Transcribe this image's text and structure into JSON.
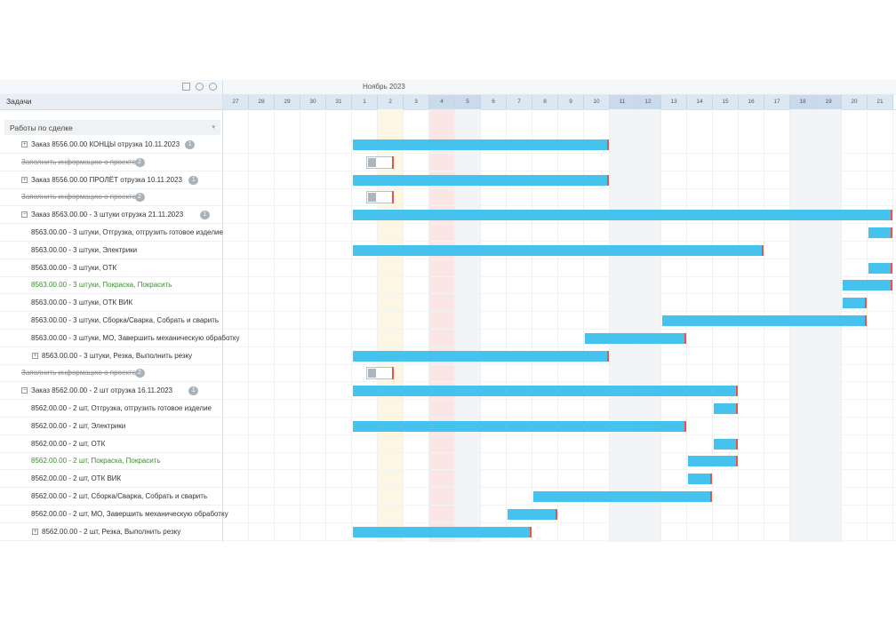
{
  "toolbar": {
    "icons": [
      "print-icon",
      "zoom-in-icon",
      "zoom-out-icon"
    ]
  },
  "left_header": {
    "title": "Задачи"
  },
  "group": {
    "label": "Работы по сделке"
  },
  "timeline": {
    "month": "Ноябрь 2023",
    "days": [
      "27",
      "28",
      "29",
      "30",
      "31",
      "1",
      "2",
      "3",
      "4",
      "5",
      "6",
      "7",
      "8",
      "9",
      "10",
      "11",
      "12",
      "13",
      "14",
      "15",
      "16",
      "17",
      "18",
      "19",
      "20",
      "21"
    ],
    "weekend_days": [
      "4",
      "5",
      "11",
      "12",
      "18",
      "19"
    ],
    "today_day": "2",
    "holiday_day": "4"
  },
  "colors": {
    "bar": "#45c3ee",
    "bar_end": "#e2574c",
    "green_text": "#3c8d2f"
  },
  "tasks": [
    {
      "label": "Заказ 8556.00.00 КОНЦЫ отрузка 10.11.2023",
      "badge": "1",
      "level": 1,
      "toggle": "+",
      "style": "normal",
      "kind": "bar",
      "start": "1",
      "end": "10"
    },
    {
      "label": "Заполнить информацию о проекте",
      "badge": "2",
      "level": 1,
      "toggle": "",
      "style": "strike",
      "kind": "milestone",
      "start": "1",
      "end": "2"
    },
    {
      "label": "Заказ 8556.00.00 ПРОЛЁТ отрузка 10.11.2023",
      "badge": "1",
      "level": 1,
      "toggle": "+",
      "style": "normal",
      "kind": "bar",
      "start": "1",
      "end": "10"
    },
    {
      "label": "Заполнить информацию о проекте",
      "badge": "2",
      "level": 1,
      "toggle": "",
      "style": "strike",
      "kind": "milestone",
      "start": "1",
      "end": "2"
    },
    {
      "label": "Заказ 8563.00.00 - 3 штуки отрузка 21.11.2023",
      "badge": "1",
      "level": 1,
      "toggle": "−",
      "style": "normal",
      "kind": "bar",
      "start": "1",
      "end": "21"
    },
    {
      "label": "8563.00.00 - 3 штуки, Отгрузка, отгрузить готовое изделие",
      "badge": "",
      "level": 2,
      "toggle": "",
      "style": "normal",
      "kind": "bar",
      "start": "21",
      "end": "21"
    },
    {
      "label": "8563.00.00 - 3 штуки, Электрики",
      "badge": "",
      "level": 2,
      "toggle": "",
      "style": "normal",
      "kind": "bar",
      "start": "1",
      "end": "16"
    },
    {
      "label": "8563.00.00 - 3 штуки, ОТК",
      "badge": "",
      "level": 2,
      "toggle": "",
      "style": "normal",
      "kind": "bar",
      "start": "21",
      "end": "21"
    },
    {
      "label": "8563.00.00 - 3 штуки, Покраска, Покрасить",
      "badge": "",
      "level": 2,
      "toggle": "",
      "style": "green",
      "kind": "bar",
      "start": "20",
      "end": "21"
    },
    {
      "label": "8563.00.00 - 3 штуки, ОТК ВИК",
      "badge": "",
      "level": 2,
      "toggle": "",
      "style": "normal",
      "kind": "bar",
      "start": "20",
      "end": "20"
    },
    {
      "label": "8563.00.00 - 3 штуки, Сборка/Сварка, Собрать и сварить",
      "badge": "",
      "level": 2,
      "toggle": "",
      "style": "normal",
      "kind": "bar",
      "start": "13",
      "end": "20"
    },
    {
      "label": "8563.00.00 - 3 штуки, МО, Завершить механическую обработку",
      "badge": "",
      "level": 2,
      "toggle": "",
      "style": "normal",
      "kind": "bar",
      "start": "10",
      "end": "13"
    },
    {
      "label": "8563.00.00 - 3 штуки, Резка, Выполнить резку",
      "badge": "",
      "level": 2,
      "toggle": "+",
      "style": "normal",
      "kind": "bar",
      "start": "1",
      "end": "10"
    },
    {
      "label": "Заполнить информацию о проекте",
      "badge": "2",
      "level": 1,
      "toggle": "",
      "style": "strike",
      "kind": "milestone",
      "start": "1",
      "end": "2"
    },
    {
      "label": "Заказ 8562.00.00 - 2 шт отрузка 16.11.2023",
      "badge": "1",
      "level": 1,
      "toggle": "−",
      "style": "normal",
      "kind": "bar",
      "start": "1",
      "end": "15"
    },
    {
      "label": "8562.00.00 - 2 шт, Отгрузка, отгрузить готовое изделие",
      "badge": "",
      "level": 2,
      "toggle": "",
      "style": "normal",
      "kind": "bar",
      "start": "15",
      "end": "15"
    },
    {
      "label": "8562.00.00 - 2 шт, Электрики",
      "badge": "",
      "level": 2,
      "toggle": "",
      "style": "normal",
      "kind": "bar",
      "start": "1",
      "end": "13"
    },
    {
      "label": "8562.00.00 - 2 шт, ОТК",
      "badge": "",
      "level": 2,
      "toggle": "",
      "style": "normal",
      "kind": "bar",
      "start": "15",
      "end": "15"
    },
    {
      "label": "8562.00.00 - 2 шт, Покраска, Покрасить",
      "badge": "",
      "level": 2,
      "toggle": "",
      "style": "green",
      "kind": "bar",
      "start": "14",
      "end": "15"
    },
    {
      "label": "8562.00.00 - 2 шт, ОТК ВИК",
      "badge": "",
      "level": 2,
      "toggle": "",
      "style": "normal",
      "kind": "bar",
      "start": "14",
      "end": "14"
    },
    {
      "label": "8562.00.00 - 2 шт, Сборка/Сварка, Собрать и сварить",
      "badge": "",
      "level": 2,
      "toggle": "",
      "style": "normal",
      "kind": "bar",
      "start": "8",
      "end": "14"
    },
    {
      "label": "8562.00.00 - 2 шт, МО, Завершить механическую обработку",
      "badge": "",
      "level": 2,
      "toggle": "",
      "style": "normal",
      "kind": "bar",
      "start": "7",
      "end": "8"
    },
    {
      "label": "8562.00.00 - 2 шт, Резка, Выполнить резку",
      "badge": "",
      "level": 2,
      "toggle": "+",
      "style": "normal",
      "kind": "bar",
      "start": "1",
      "end": "7"
    }
  ]
}
